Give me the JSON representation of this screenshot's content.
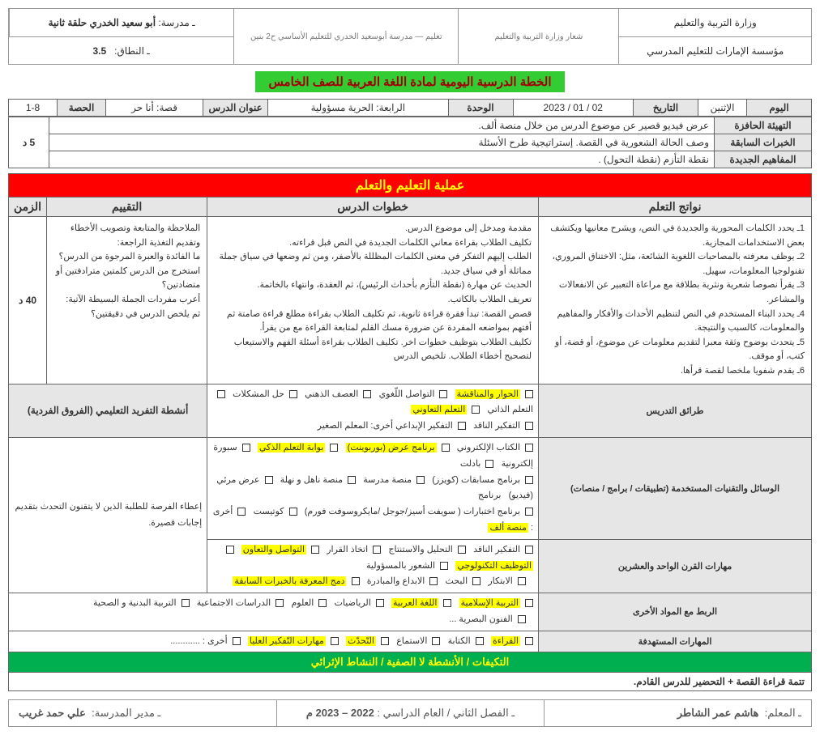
{
  "header": {
    "ministry": "وزارة التربية والتعليم",
    "foundation": "مؤسسة الإمارات للتعليم المدرسي",
    "logo1_alt": "شعار وزارة التربية والتعليم",
    "logo2_alt": "تعليم — مدرسة أبوسعيد الخدري للتعليم الأساسي ح2 بنين",
    "school_label": "ـ مدرسة:",
    "school_name": "أبو سعيد الخدري حلقة ثانية",
    "cluster_label": "ـ النطاق:",
    "cluster_value": "3.5"
  },
  "title": "الخطة الدرسية اليومية لمادة اللغة العربية للصف الخامس",
  "meta": {
    "day_label": "اليوم",
    "day": "الإثنين",
    "date_label": "التاريخ",
    "date": "02 / 01 / 2023",
    "unit_label": "الوحدة",
    "unit": "الرابعة: الحرية مسؤولية",
    "lesson_label": "عنوان الدرس",
    "lesson": "قصة: أنا حر",
    "period_label": "الحصة",
    "period": "1-8"
  },
  "prep": {
    "warmup_label": "التهيئة الحافزة",
    "warmup": "عرض فيديو قصير عن موضوع الدرس من خلال منصة ألف.",
    "prior_label": "الخبرات السابقة",
    "prior": "وصف الحالة الشعورية في القصة. إستراتيجية طرح الأسئلة",
    "new_label": "المفاهيم الجديدة",
    "new": "نقطة التأزم (نقطة التحول) .",
    "time": "5 د"
  },
  "process": {
    "header": "عملية التعليم والتعلم",
    "outcomes_h": "نواتج التعلم",
    "steps_h": "خطوات الدرس",
    "assess_h": "التقييم",
    "time_h": "الزمن",
    "outcomes": "1ـ يحدد الكلمات المحورية والجديدة في النص، ويشرح معانيها ويكتشف بعض الاستخدامات المجازية.\n2ـ يوظف معرفته بالمصاحبات اللغوية الشائعة، مثل: الاختناق المروري، تقنولوجيا المعلومات، سهيل.\n3ـ يقرأ نصوصا شعرية ونثرية بطلاقة مع مراعاة التعبير عن الانفعالات والمشاعر.\n4ـ يحدد البناء المستخدم في النص لتنظيم الأحداث والأفكار والمفاهيم والمعلومات، كالسبب والنتيجة.\n5ـ يتحدث بوضوح وثقة معبرا لتقديم معلومات عن موضوع، أو قضة، أو كتب، أو موقف.\n6ـ يقدم شفويا ملخصا لقصة قرأها.",
    "steps": "مقدمة ومدخل إلى موضوع الدرس.\nتكليف الطلاب بقراءة معاني الكلمات الجديدة في النص قبل قراءته.\nالطلب إليهم التفكر في معنى الكلمات المظللة بالأصفر، ومن ثم وضعها في سياق جملة مماثلة أو في سياق جديد.\nالحديث عن مهارة (نقطة التأزم بأحداث الرئيس)، ثم العقدة، وانتهاء بالخاتمة.\nتعريف الطلاب بالكاتب.\nقصص القصة: تبدأ فقرة قراءة ثانوية، ثم تكليف الطلاب بقراءة مطلع قراءة صامتة ثم أفتهم بمواضعه المفردة عن ضرورة مسك القلم لمتابعة القراءة مع من يقرأ.\nتكليف الطلاب بتوظيف خطوات اخر. تكليف الطلاب بقراءة أسئلة الفهم والاستيعاب لتصحيح أخطاء الطلاب. تلخيص الدرس",
    "assess": "الملاحظة والمتابعة وتصويب الأخطاء\nوتقديم التغذية الراجعة:\nما الفائدة والعبرة المرجوة من الدرس؟\nاستخرج من الدرس كلمتين مترادفتين أو متضادتين؟\nأعرب مفردات الجملة البسيطة الآتية:\nثم يلخص الدرس في دقيقتين؟",
    "time": "40 د"
  },
  "methods": {
    "label": "طرائق التدريس",
    "items": [
      "الحوار والمناقشة",
      "التواصل اللّغوي",
      "العصف الذهني",
      "حل المشكلات",
      "التعلم الذاتي",
      "التعلم التعاوني",
      "التفكير الناقد",
      "التفكير الإبداعي"
    ],
    "highlighted": [
      0,
      5
    ],
    "other_label": "أخرى:",
    "other": "المعلم الصغير",
    "activity_label": "أنشطة التفريد التعليمي (الفروق الفردية)"
  },
  "tools": {
    "label": "الوسائل والتقنيات المستخدمة (تطبيقات / برامج / منصات)",
    "items": [
      "الكتاب الإلكتروني",
      "برنامج عرض (بوربوينت)",
      "بوابة التعلم الذكي",
      "سبورة إلكترونية",
      "بادلت",
      "برنامج مسابقات (كويزز)",
      "منصة مدرسة",
      "منصة ناهل و نهلة",
      "عرض مرئي (فيديو)",
      "برنامج اختبارات ( سويفت أسيز/جوجل /مايكروسوفت فورم)",
      "كوتيست"
    ],
    "highlighted": [
      1,
      2
    ],
    "other_label": "أخرى :",
    "other_hl": "منصة ألف",
    "side_text": "إعطاء الفرصة للطلبة الذين لا يتقنون التحدث بتقديم إجابات قصيرة."
  },
  "c21": {
    "label": "مهارات القرن الواحد والعشرين",
    "items": [
      "التفكير الناقد",
      "التحليل والاستنتاج",
      "اتخاذ القرار",
      "التواصل والتعاون",
      "التوظيف التكنولوجي",
      "الشعور بالمسؤولية",
      "الابتكار",
      "البحث",
      "الابداع والمبادرة",
      "دمج المعرفة بالخبرات السابقة"
    ],
    "highlighted": [
      3,
      4,
      9
    ]
  },
  "links": {
    "label": "الربط مع المواد الأخرى",
    "items": [
      "التربية الإسلامية",
      "اللغة العربية",
      "الرياضيات",
      "العلوم",
      "الدراسات الاجتماعية",
      "التربية البدنية و الصحية",
      "الفنون البصرية ..."
    ],
    "highlighted": [
      0,
      1
    ]
  },
  "skills": {
    "label": "المهارات المستهدفة",
    "items": [
      "القراءة",
      "الكتابة",
      "الاستماع",
      "التّحدّث",
      "مهارات التّفكير العليا"
    ],
    "highlighted": [
      0,
      3,
      4
    ],
    "other_label": "أخرى : ............"
  },
  "green_band": "التكيفات / الأنشطة لا الصفية / النشاط الإثرائي",
  "enrichment": "تتمة قراءة القصة + التحضير للدرس القادم.",
  "footer": {
    "teacher_label": "ـ المعلم:",
    "teacher": "هاشم عمر الشاطر",
    "term_label": "ـ الفصل الثاني / العام الدراسي :",
    "term": "2022 – 2023 م",
    "principal_label": "ـ مدير المدرسة:",
    "principal": "علي حمد غريب"
  }
}
